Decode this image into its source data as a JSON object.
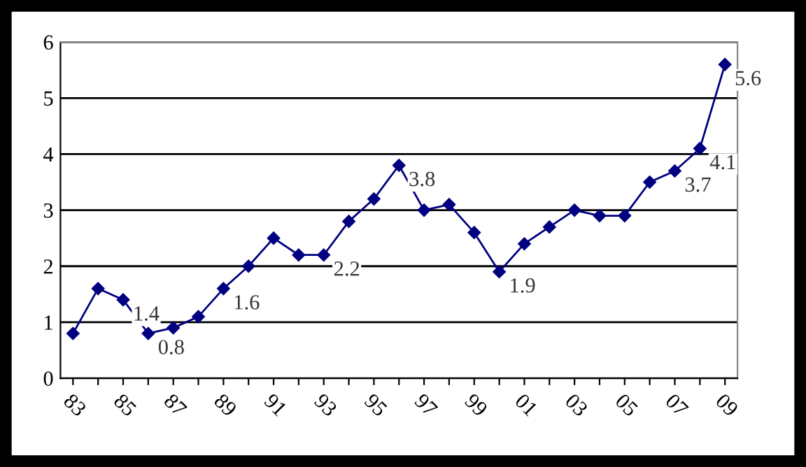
{
  "chart_data": {
    "type": "line",
    "categories": [
      "83",
      null,
      "85",
      null,
      "87",
      null,
      "89",
      null,
      "91",
      null,
      "93",
      null,
      "95",
      null,
      "97",
      null,
      "99",
      null,
      "01",
      null,
      "03",
      null,
      "05",
      null,
      "07",
      null,
      "09"
    ],
    "series": [
      {
        "color": "#000080",
        "values": [
          0.8,
          1.6,
          1.4,
          0.8,
          0.9,
          1.1,
          1.6,
          2.0,
          2.5,
          2.2,
          2.2,
          2.8,
          3.2,
          3.8,
          3.0,
          3.1,
          2.6,
          1.9,
          2.4,
          2.7,
          3.0,
          2.9,
          2.9,
          3.5,
          3.7,
          4.1,
          5.6
        ],
        "value_labels": [
          null,
          null,
          "1.4",
          "0.8",
          null,
          null,
          "1.6",
          null,
          null,
          null,
          "2.2",
          null,
          null,
          "3.8",
          null,
          null,
          null,
          "1.9",
          null,
          null,
          null,
          null,
          null,
          null,
          "3.7",
          "4.1",
          "5.6"
        ]
      }
    ],
    "ylim": [
      0,
      6
    ],
    "yticks": [
      0,
      1,
      2,
      3,
      4,
      5,
      6
    ],
    "grid": "y",
    "marker": "diamond",
    "line_style": "solid"
  }
}
